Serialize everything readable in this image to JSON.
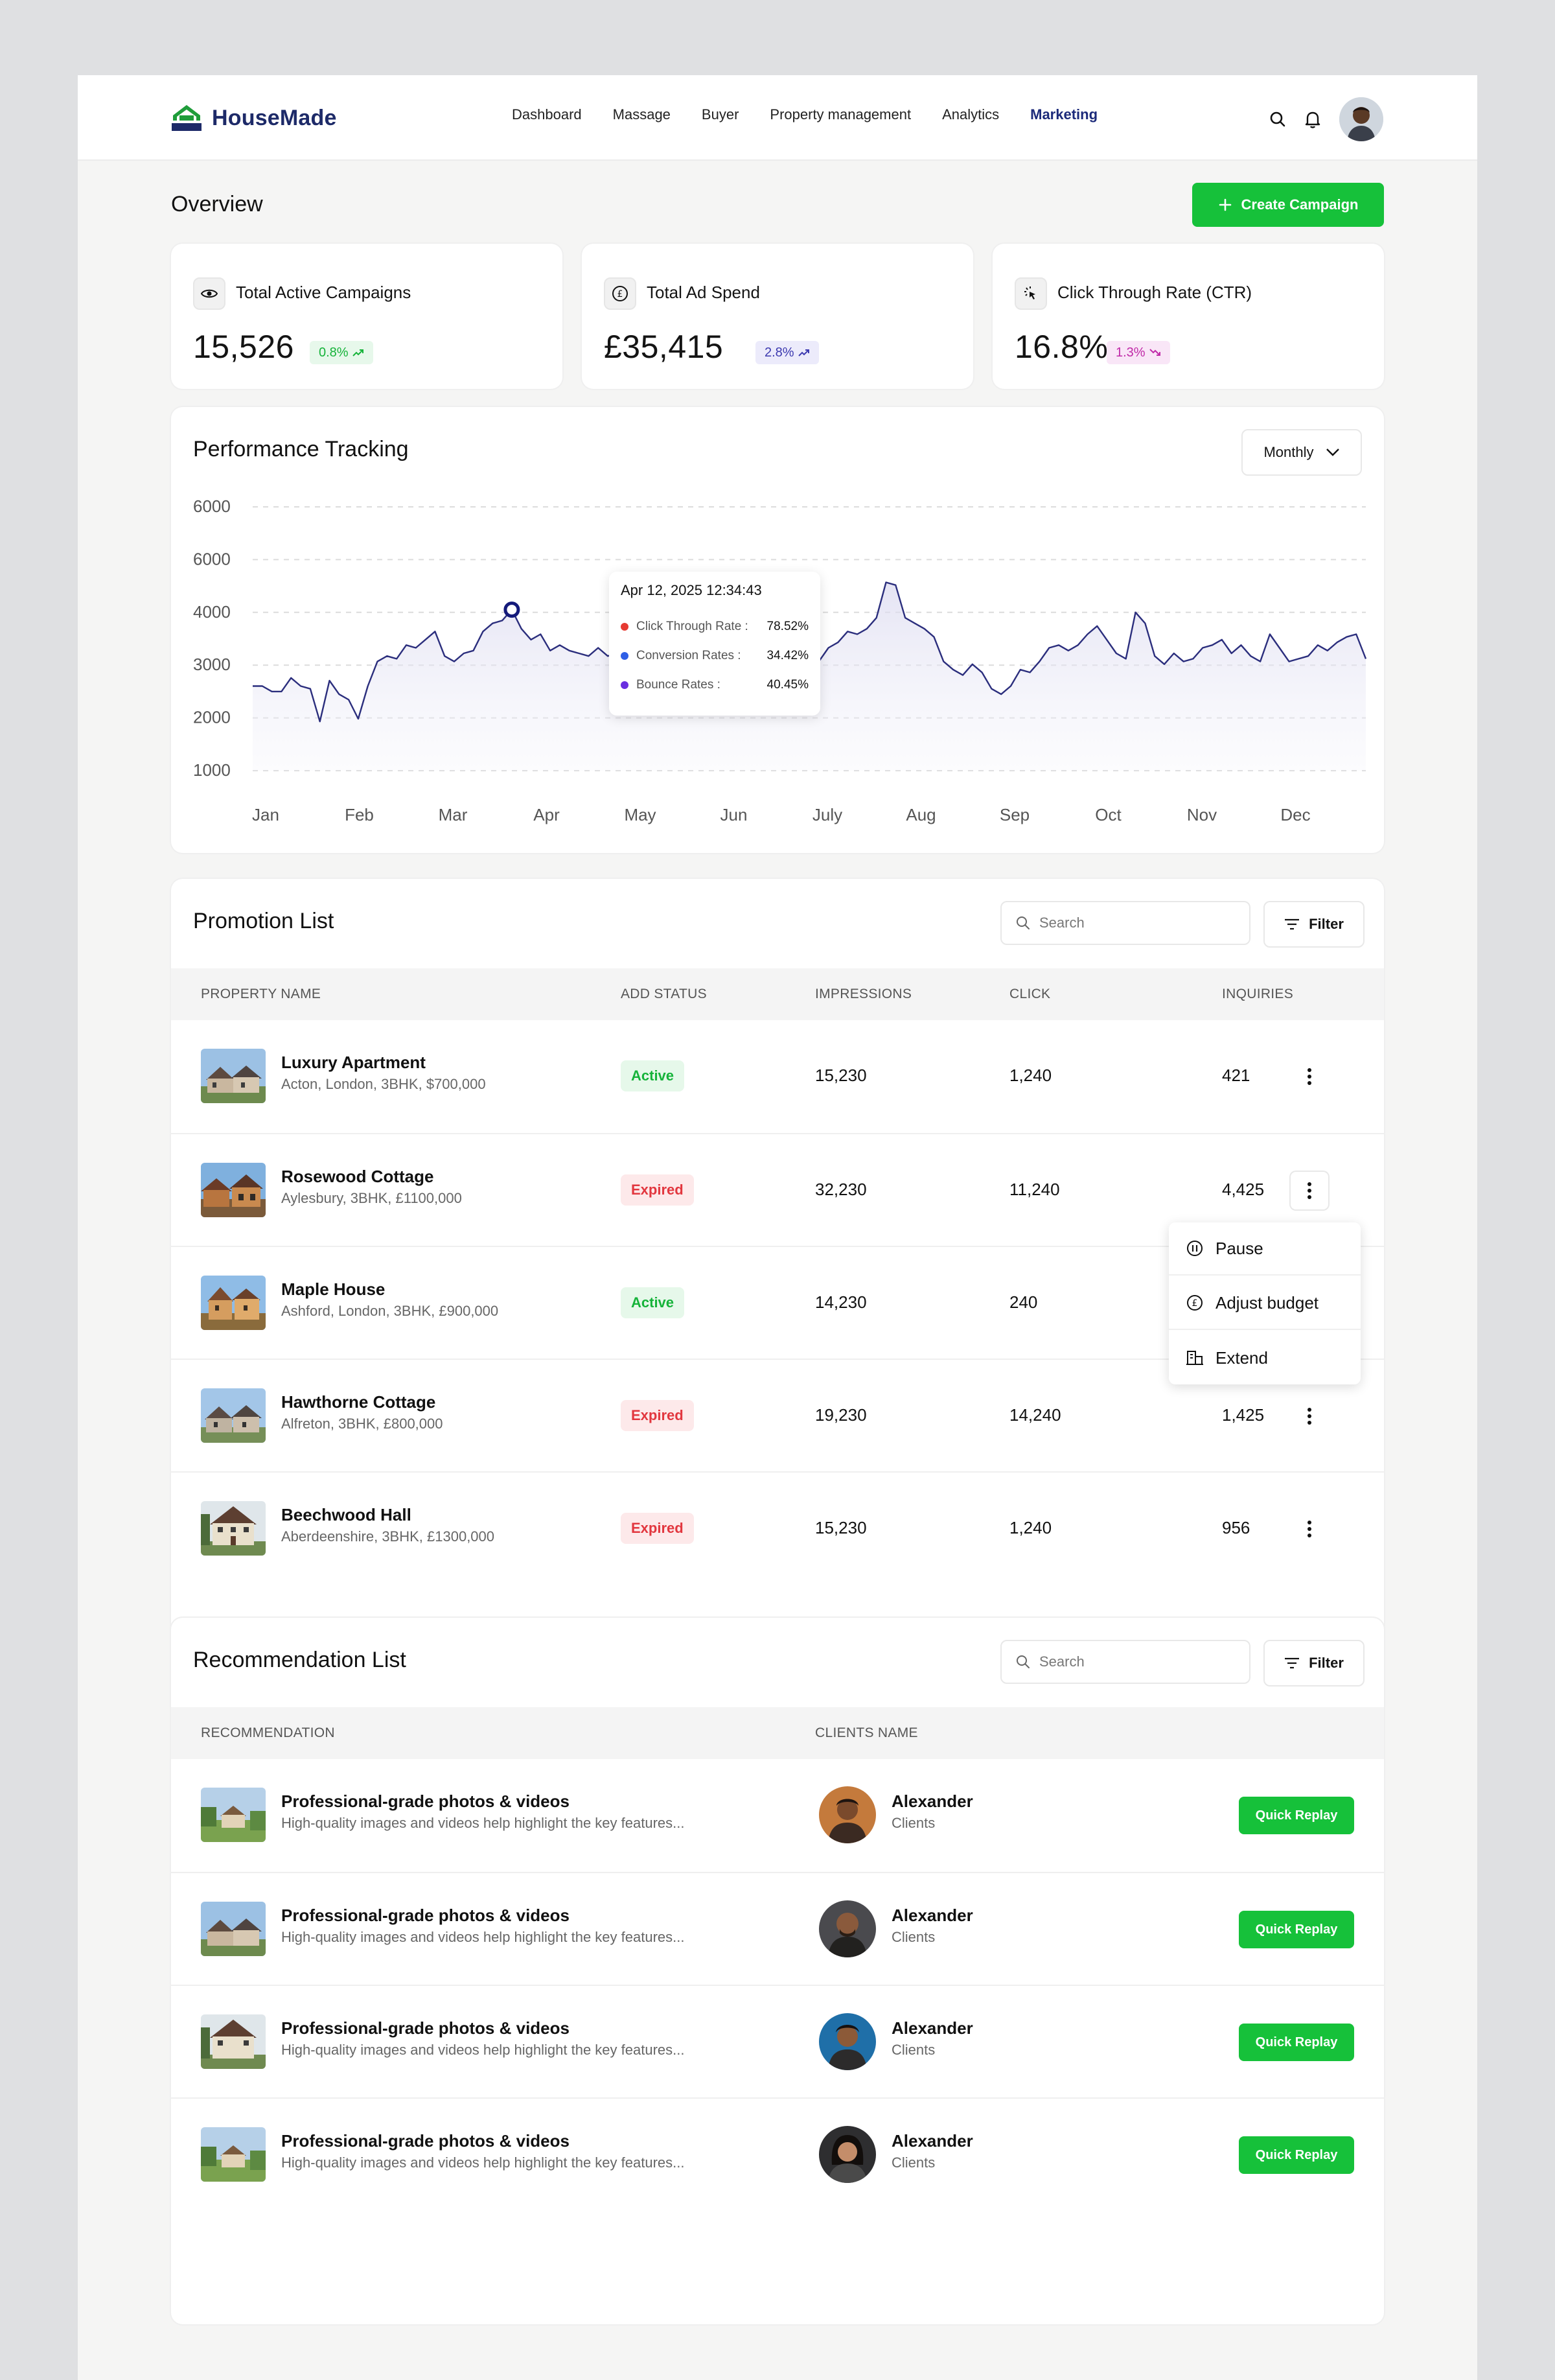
{
  "app": {
    "name": "HouseMade",
    "brand_color": "#1d2a68",
    "accent": "#16c13a"
  },
  "nav": {
    "items": [
      "Dashboard",
      "Massage",
      "Buyer",
      "Property management",
      "Analytics",
      "Marketing"
    ],
    "active": "Marketing"
  },
  "overview": {
    "title": "Overview",
    "create_label": "Create Campaign"
  },
  "stats": [
    {
      "label": "Total Active Campaigns",
      "value": "15,526",
      "badge": "0.8%",
      "trend": "up",
      "icon": "eye-icon",
      "badge_bg": "#e7f8eb",
      "badge_color": "#16b33a"
    },
    {
      "label": "Total Ad Spend",
      "value": "£35,415",
      "badge": "2.8%",
      "trend": "up",
      "icon": "pound-icon",
      "badge_bg": "#ecebfb",
      "badge_color": "#3d3ab0"
    },
    {
      "label": "Click Through Rate (CTR)",
      "value": "16.8%",
      "badge": "1.3%",
      "trend": "down",
      "icon": "cursor-click-icon",
      "badge_bg": "#f9e6f7",
      "badge_color": "#c02aa8"
    }
  ],
  "performance": {
    "title": "Performance Tracking",
    "period": "Monthly",
    "tooltip": {
      "date": "Apr 12, 2025 12:34:43",
      "rows": [
        {
          "label": "Click Through Rate :",
          "value": "78.52%",
          "color": "#e63a32"
        },
        {
          "label": "Conversion Rates :",
          "value": "34.42%",
          "color": "#2f5fe6"
        },
        {
          "label": "Bounce Rates :",
          "value": "40.45%",
          "color": "#6a2fe0"
        }
      ]
    }
  },
  "chart_data": {
    "type": "area",
    "title": "Performance Tracking",
    "y_tick_labels": [
      "6000",
      "6000",
      "4000",
      "3000",
      "2000",
      "1000"
    ],
    "x_tick_labels": [
      "Jan",
      "Feb",
      "Mar",
      "Apr",
      "May",
      "Jun",
      "July",
      "Aug",
      "Sep",
      "Oct",
      "Nov",
      "Dec"
    ],
    "ylim": [
      1000,
      6000
    ],
    "grid": true,
    "series": [
      {
        "color": "#2b2e7d",
        "values": [
          2550,
          2550,
          2450,
          2450,
          2700,
          2550,
          2500,
          1900,
          2650,
          2400,
          2300,
          1950,
          2550,
          3000,
          3100,
          3050,
          3300,
          3250,
          3400,
          3550,
          3100,
          3000,
          3150,
          3200,
          3550,
          3700,
          3750,
          3950,
          3600,
          3400,
          3500,
          3200,
          3300,
          3200,
          3150,
          3100,
          3250,
          3100,
          3150,
          3000,
          3050,
          2950,
          3150,
          3350,
          3050,
          3100,
          3300,
          3150,
          2750,
          2600,
          3250,
          3200,
          3000,
          2650,
          3000,
          3350,
          3250,
          3150,
          3750,
          3000,
          3250,
          3350,
          3550,
          3500,
          3600,
          3800,
          4450,
          4400,
          3800,
          3700,
          3600,
          3450,
          3000,
          2850,
          2750,
          2950,
          2800,
          2500,
          2400,
          2550,
          2850,
          2800,
          3000,
          3250,
          3300,
          3200,
          3300,
          3500,
          3650,
          3400,
          3150,
          3050,
          3900,
          3700,
          3100,
          2950,
          3150,
          3000,
          3050,
          3250,
          3300,
          3400,
          3150,
          3300,
          3100,
          3000,
          3500,
          3250,
          3000,
          3050,
          3100,
          3300,
          3200,
          3350,
          3450,
          3500,
          3050
        ]
      }
    ]
  },
  "promotion": {
    "title": "Promotion List",
    "search_placeholder": "Search",
    "filter_label": "Filter",
    "columns": [
      "PROPERTY NAME",
      "ADD STATUS",
      "IMPRESSIONS",
      "CLICK",
      "INQUIRIES"
    ],
    "rows": [
      {
        "name": "Luxury Apartment",
        "sub": "Acton, London, 3BHK, $700,000",
        "status": "Active",
        "impressions": "15,230",
        "click": "1,240",
        "inquiries": "421"
      },
      {
        "name": "Rosewood Cottage",
        "sub": "Aylesbury, 3BHK, £1100,000",
        "status": "Expired",
        "impressions": "32,230",
        "click": "11,240",
        "inquiries": "4,425"
      },
      {
        "name": "Maple House",
        "sub": "Ashford, London, 3BHK, £900,000",
        "status": "Active",
        "impressions": "14,230",
        "click": "240",
        "inquiries": ""
      },
      {
        "name": "Hawthorne Cottage",
        "sub": "Alfreton, 3BHK, £800,000",
        "status": "Expired",
        "impressions": "19,230",
        "click": "14,240",
        "inquiries": "1,425"
      },
      {
        "name": "Beechwood Hall",
        "sub": "Aberdeenshire, 3BHK, £1300,000",
        "status": "Expired",
        "impressions": "15,230",
        "click": "1,240",
        "inquiries": "956"
      }
    ],
    "menu": [
      "Pause",
      "Adjust budget",
      "Extend"
    ]
  },
  "recommendation": {
    "title": "Recommendation List",
    "search_placeholder": "Search",
    "filter_label": "Filter",
    "columns": [
      "RECOMMENDATION",
      "CLIENTS NAME"
    ],
    "rows": [
      {
        "title": "Professional-grade photos & videos",
        "sub": "High-quality images and videos help highlight the key features...",
        "client": "Alexander",
        "role": "Clients",
        "action": "Quick Replay"
      },
      {
        "title": "Professional-grade photos & videos",
        "sub": "High-quality images and videos help highlight the key features...",
        "client": "Alexander",
        "role": "Clients",
        "action": "Quick Replay"
      },
      {
        "title": "Professional-grade photos & videos",
        "sub": "High-quality images and videos help highlight the key features...",
        "client": "Alexander",
        "role": "Clients",
        "action": "Quick Replay"
      },
      {
        "title": "Professional-grade photos & videos",
        "sub": "High-quality images and videos help highlight the key features...",
        "client": "Alexander",
        "role": "Clients",
        "action": "Quick Replay"
      }
    ]
  }
}
